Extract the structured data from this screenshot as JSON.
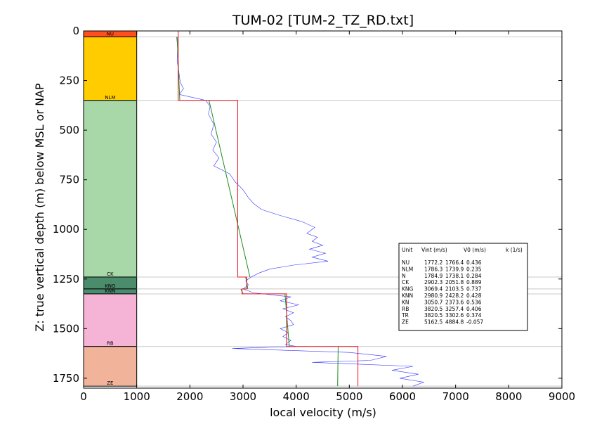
{
  "chart_data": {
    "type": "line",
    "title": "TUM-02 [TUM-2_TZ_RD.txt]",
    "xlabel": "local velocity (m/s)",
    "ylabel": "Z: true vertical depth (m) below MSL or NAP",
    "xlim": [
      0,
      9000
    ],
    "ylim": [
      1800,
      0
    ],
    "x_ticks": [
      "0",
      "1000",
      "2000",
      "3000",
      "4000",
      "5000",
      "6000",
      "7000",
      "8000",
      "9000"
    ],
    "y_ticks": [
      "0",
      "250",
      "500",
      "750",
      "1000",
      "1250",
      "1500",
      "1750"
    ],
    "x_tick_values": [
      0,
      1000,
      2000,
      3000,
      4000,
      5000,
      6000,
      7000,
      8000,
      9000
    ],
    "y_tick_values": [
      0,
      250,
      500,
      750,
      1000,
      1250,
      1500,
      1750
    ],
    "colors": {
      "vint": "#e8101e",
      "model": "#1e8c1e",
      "log": "#3333ff",
      "horizon": "#c8c8c8"
    },
    "layers": [
      {
        "name": "NU",
        "top": 0,
        "bottom": 30,
        "color": "#ff4f1f"
      },
      {
        "name": "NLM",
        "top": 30,
        "bottom": 350,
        "color": "#ffcc00"
      },
      {
        "name": "CK",
        "top": 350,
        "bottom": 1240,
        "color": "#a8d8a8"
      },
      {
        "name": "KNG",
        "top": 1240,
        "bottom": 1300,
        "color": "#4a8c6c"
      },
      {
        "name": "KNN",
        "top": 1300,
        "bottom": 1325,
        "color": "#4a8c6c"
      },
      {
        "name": "RB",
        "top": 1325,
        "bottom": 1590,
        "color": "#f5b3d6"
      },
      {
        "name": "ZE",
        "top": 1590,
        "bottom": 1790,
        "color": "#f2b39b"
      }
    ],
    "interval_velocity": [
      {
        "top": 0,
        "bottom": 350,
        "v": 1780
      },
      {
        "top": 350,
        "bottom": 1240,
        "v": 2900
      },
      {
        "top": 1240,
        "bottom": 1300,
        "v": 3069
      },
      {
        "top": 1300,
        "bottom": 1325,
        "v": 2981
      },
      {
        "top": 1325,
        "bottom": 1590,
        "v": 3820
      },
      {
        "top": 1590,
        "bottom": 1790,
        "v": 5162
      }
    ],
    "model_velocity": [
      {
        "z": [
          30,
          350
        ],
        "v": [
          1760,
          1810
        ]
      },
      {
        "z": [
          350,
          1240
        ],
        "v": [
          2360,
          3130
        ]
      },
      {
        "z": [
          1240,
          1300
        ],
        "v": [
          3050,
          3090
        ]
      },
      {
        "z": [
          1300,
          1325
        ],
        "v": [
          2960,
          3000
        ]
      },
      {
        "z": [
          1325,
          1590
        ],
        "v": [
          3790,
          3870
        ]
      },
      {
        "z": [
          1590,
          1790
        ],
        "v": [
          4790,
          4780
        ]
      }
    ],
    "log_velocity": {
      "z": [
        30,
        80,
        150,
        200,
        260,
        290,
        320,
        350,
        380,
        420,
        470,
        520,
        560,
        600,
        640,
        680,
        720,
        760,
        800,
        840,
        870,
        900,
        930,
        960,
        990,
        1020,
        1040,
        1060,
        1080,
        1100,
        1120,
        1140,
        1160,
        1180,
        1200,
        1220,
        1240,
        1260,
        1280,
        1300,
        1320,
        1340,
        1360,
        1380,
        1400,
        1420,
        1440,
        1460,
        1480,
        1500,
        1520,
        1540,
        1560,
        1580,
        1590,
        1600,
        1620,
        1640,
        1660,
        1670,
        1690,
        1710,
        1730,
        1750,
        1770,
        1790
      ],
      "v": [
        1750,
        1770,
        1760,
        1790,
        1820,
        1880,
        1800,
        2300,
        2380,
        2350,
        2450,
        2400,
        2500,
        2430,
        2550,
        2450,
        2750,
        2850,
        3000,
        3100,
        3200,
        3350,
        3700,
        4100,
        4350,
        4200,
        4400,
        4300,
        4500,
        4250,
        4550,
        4300,
        4600,
        3950,
        3500,
        3300,
        3150,
        3050,
        3100,
        3000,
        3200,
        3900,
        3700,
        4050,
        3750,
        3950,
        3800,
        3900,
        3950,
        3700,
        3850,
        3750,
        3900,
        3800,
        4000,
        2800,
        5000,
        5700,
        5400,
        4300,
        6200,
        5800,
        6300,
        5950,
        6400,
        6200
      ]
    },
    "table": {
      "headers": [
        "Unit",
        "Vint (m/s)",
        "V0 (m/s)",
        "k (1/s)"
      ],
      "rows": [
        [
          "NU",
          "1772.2",
          "1766.4",
          "0.436"
        ],
        [
          "NLM",
          "1786.3",
          "1739.9",
          "0.235"
        ],
        [
          "N",
          "1784.9",
          "1738.1",
          "0.284"
        ],
        [
          "CK",
          "2902.3",
          "2051.8",
          "0.889"
        ],
        [
          "KNG",
          "3069.4",
          "2103.5",
          "0.737"
        ],
        [
          "KNN",
          "2980.9",
          "2428.2",
          "0.428"
        ],
        [
          "KN",
          "3050.7",
          "2373.6",
          "0.536"
        ],
        [
          "RB",
          "3820.5",
          "3257.4",
          "0.406"
        ],
        [
          "TR",
          "3820.5",
          "3302.6",
          "0.374"
        ],
        [
          "ZE",
          "5162.5",
          "4884.8",
          "-0.057"
        ]
      ]
    }
  }
}
